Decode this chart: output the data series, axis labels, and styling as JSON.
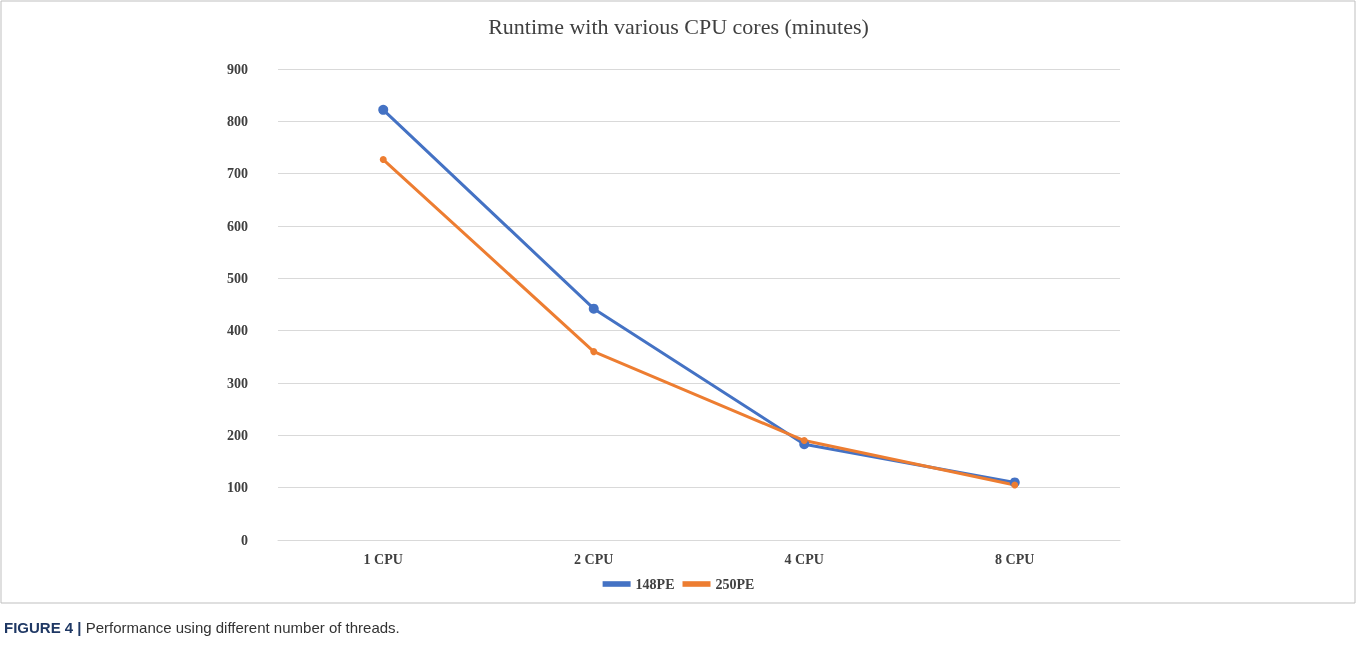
{
  "chart_data": {
    "type": "line",
    "title": "Runtime with various CPU cores (minutes)",
    "categories": [
      "1 CPU",
      "2 CPU",
      "4 CPU",
      "8 CPU"
    ],
    "series": [
      {
        "name": "148PE",
        "color": "#4472c4",
        "values": [
          822,
          442,
          183,
          110
        ]
      },
      {
        "name": "250PE",
        "color": "#ed7d31",
        "values": [
          727,
          360,
          190,
          105
        ]
      }
    ],
    "ylim": [
      0,
      900
    ],
    "yticks": [
      0,
      100,
      200,
      300,
      400,
      500,
      600,
      700,
      800,
      900
    ],
    "grid": "y",
    "legend": "bottom",
    "marker": "circle",
    "line_style": "solid",
    "annotations": [
      "FIGURE 4 | Performance using different number of threads."
    ]
  }
}
